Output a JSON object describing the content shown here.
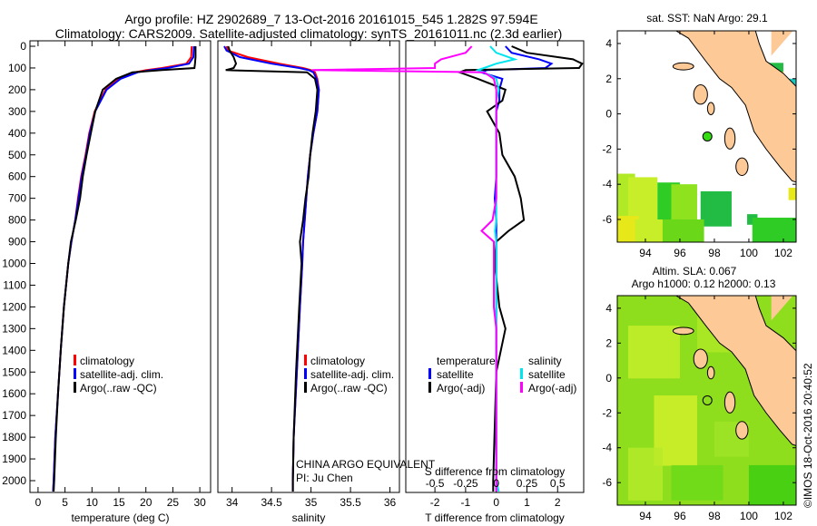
{
  "title_line1": "Argo profile: HZ 2902689_7 13-Oct-2016 20161015_545 1.282S 97.594E",
  "title_line2": "Climatology: CARS2009. Satellite-adjusted climatology: synTS_20161011.nc (2.3d earlier)",
  "credit": "©IMOS 18-Oct-2016 20:40:52",
  "annotation": {
    "line1": "CHINA ARGO EQUIVALENT",
    "line2": "PI: Ju Chen"
  },
  "colors": {
    "climatology": "#ff0000",
    "satellite": "#0000ff",
    "argo": "#000000",
    "sal_satellite": "#00e5ee",
    "sal_argo": "#ff00ff",
    "land": "#fdc996"
  },
  "chart_data": [
    {
      "type": "line",
      "xlabel": "temperature (deg C)",
      "xticks": [
        0,
        5,
        10,
        15,
        20,
        25,
        30
      ],
      "xlim": [
        -1.5,
        32
      ],
      "ylim": [
        2050,
        0
      ],
      "yticks": [
        0,
        100,
        200,
        300,
        400,
        500,
        600,
        700,
        800,
        900,
        1000,
        1100,
        1200,
        1300,
        1400,
        1500,
        1600,
        1700,
        1800,
        1900,
        2000
      ],
      "legend": [
        "climatology",
        "satellite-adj. clim.",
        "Argo(..raw -QC)"
      ],
      "depth": [
        0,
        50,
        80,
        100,
        110,
        120,
        150,
        200,
        300,
        400,
        500,
        600,
        700,
        800,
        900,
        1000,
        1200,
        1400,
        1600,
        1800,
        2000,
        2050
      ],
      "series": [
        {
          "name": "climatology",
          "values": [
            28.5,
            28.4,
            27.5,
            23,
            20,
            18,
            15,
            12.5,
            10.5,
            9.5,
            8.8,
            8,
            7.4,
            6.9,
            6.2,
            5.6,
            4.8,
            4.2,
            3.7,
            3.2,
            2.9,
            2.8
          ]
        },
        {
          "name": "satellite-adj. clim.",
          "values": [
            28.9,
            28.8,
            28,
            24,
            21,
            18.5,
            15.3,
            12.7,
            10.6,
            9.6,
            8.9,
            8.1,
            7.5,
            6.9,
            6.2,
            5.6,
            4.8,
            4.2,
            3.7,
            3.2,
            2.9,
            2.8
          ]
        },
        {
          "name": "Argo(..raw -QC)",
          "values": [
            29.2,
            29.2,
            29.1,
            29,
            23,
            17.5,
            14.5,
            12,
            10.6,
            9.8,
            9,
            8.3,
            7.8,
            7,
            6.1,
            5.6,
            4.8,
            4.2,
            3.7,
            3.3,
            3,
            2.9
          ]
        }
      ]
    },
    {
      "type": "line",
      "xlabel": "salinity",
      "xticks": [
        34,
        34.5,
        35,
        35.5,
        36
      ],
      "xlim": [
        33.82,
        36.12
      ],
      "ylim": [
        2050,
        0
      ],
      "legend": [
        "climatology",
        "satellite-adj. clim.",
        "Argo(..raw -QC)"
      ],
      "depth": [
        0,
        20,
        50,
        80,
        100,
        110,
        120,
        150,
        200,
        300,
        400,
        500,
        600,
        700,
        800,
        900,
        1000,
        1200,
        1500,
        1800,
        2000,
        2050
      ],
      "series": [
        {
          "name": "climatology",
          "values": [
            33.93,
            33.95,
            34.2,
            34.6,
            34.9,
            35.0,
            35.05,
            35.08,
            35.1,
            35.08,
            35.03,
            34.99,
            34.96,
            34.94,
            34.92,
            34.9,
            34.89,
            34.86,
            34.82,
            34.78,
            34.77,
            34.77
          ]
        },
        {
          "name": "satellite-adj. clim.",
          "values": [
            33.9,
            33.93,
            34.1,
            34.5,
            34.85,
            34.97,
            35.03,
            35.07,
            35.1,
            35.08,
            35.03,
            34.99,
            34.96,
            34.94,
            34.92,
            34.9,
            34.89,
            34.86,
            34.82,
            34.78,
            34.77,
            34.77
          ]
        },
        {
          "name": "Argo(..raw -QC)",
          "values": [
            33.95,
            33.97,
            34.02,
            34.05,
            34.02,
            33.92,
            34.95,
            35.05,
            35.08,
            35.06,
            35.02,
            34.99,
            34.97,
            34.93,
            34.9,
            34.86,
            34.88,
            34.85,
            34.81,
            34.78,
            34.77,
            34.77
          ]
        }
      ]
    },
    {
      "type": "line",
      "xlabel": "T difference from climatology",
      "x2label": "S difference from climatology",
      "xticks": [
        -2,
        -1,
        0,
        1,
        2
      ],
      "x2ticks": [
        "-0.5",
        "-0.25",
        "0",
        "0.25",
        "0.5"
      ],
      "xlim": [
        -2.95,
        2.85
      ],
      "legend_headers": [
        "temperature",
        "salinity"
      ],
      "legend": [
        "satellite",
        "Argo(-adj)",
        "satellite",
        "Argo(-adj)"
      ],
      "depth": [
        0,
        30,
        60,
        80,
        100,
        110,
        120,
        150,
        200,
        250,
        300,
        400,
        500,
        600,
        700,
        800,
        850,
        900,
        1000,
        1200,
        1300,
        1500,
        2000,
        2050
      ],
      "series": [
        {
          "name": "T satellite",
          "values": [
            0.3,
            0.5,
            1.4,
            1.8,
            1.6,
            -0.3,
            -0.5,
            0.2,
            0.1,
            0.1,
            0,
            0,
            0,
            0,
            -0.05,
            0,
            0,
            0,
            0,
            0,
            0,
            0,
            0,
            0
          ]
        },
        {
          "name": "T Argo(-adj)",
          "values": [
            0.5,
            1.0,
            2.5,
            2.8,
            2.7,
            -1.0,
            -1.2,
            -0.6,
            0.3,
            0.2,
            -0.3,
            0.1,
            0.2,
            0.6,
            0.8,
            0.9,
            0.4,
            0,
            -0.05,
            0.1,
            0.3,
            0,
            -0.1,
            -0.1
          ]
        },
        {
          "name": "S satellite",
          "values": [
            -0.05,
            0.0,
            0.15,
            0.0,
            -0.1,
            -0.15,
            -0.1,
            0.0,
            0.02,
            0,
            0,
            0,
            0,
            0,
            0,
            0,
            -0.01,
            0,
            0,
            0,
            0,
            0,
            0,
            0.02
          ]
        },
        {
          "name": "S Argo(-adj)",
          "values": [
            -0.2,
            -0.25,
            -0.45,
            -0.5,
            -0.5,
            -1.5,
            -0.1,
            -0.02,
            0,
            0,
            0,
            0,
            0,
            0,
            0,
            -0.03,
            -0.12,
            -0.02,
            -0.02,
            -0.02,
            0,
            0,
            0,
            0
          ]
        }
      ]
    },
    {
      "type": "heatmap",
      "title": "sat. SST: NaN Argo: 29.1",
      "xticks": [
        94,
        96,
        98,
        100,
        102
      ],
      "yticks": [
        4,
        2,
        0,
        -2,
        -4,
        -6
      ],
      "xlim": [
        92.37,
        102.74
      ],
      "ylim": [
        -7.29,
        4.72
      ],
      "argo_position": {
        "lon": 97.594,
        "lat": -1.282
      }
    },
    {
      "type": "heatmap",
      "title_line1": "Altim. SLA: 0.067",
      "title_line2": "Argo h1000: 0.12 h2000: 0.13",
      "xticks": [
        94,
        96,
        98,
        100,
        102
      ],
      "yticks": [
        4,
        2,
        0,
        -2,
        -4,
        -6
      ],
      "xlim": [
        92.37,
        102.74
      ],
      "ylim": [
        -7.29,
        4.72
      ],
      "argo_position": {
        "lon": 97.594,
        "lat": -1.282
      }
    }
  ]
}
